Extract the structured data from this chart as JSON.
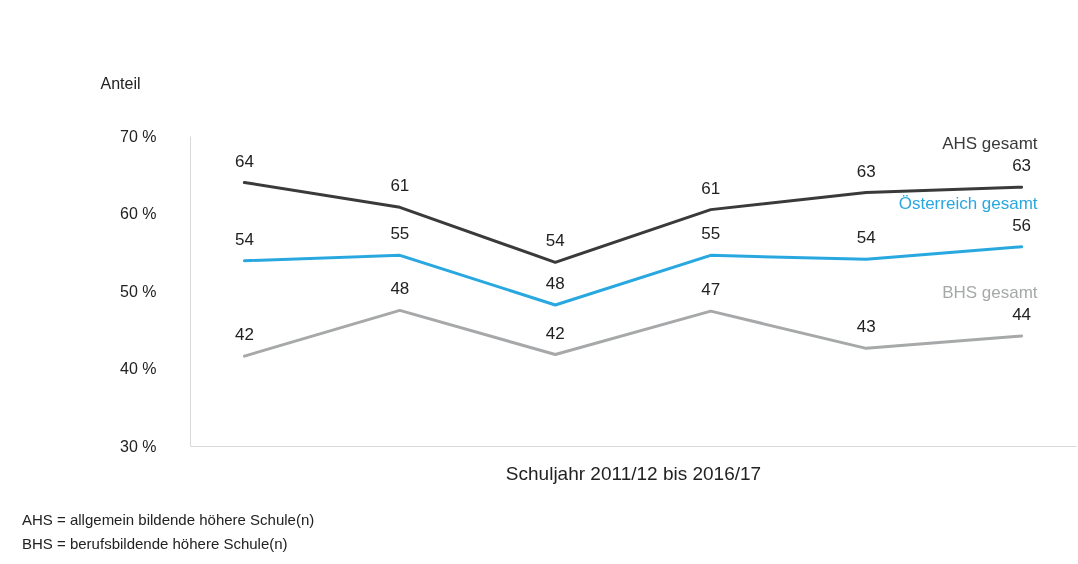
{
  "chart_data": {
    "type": "line",
    "ylabel": "Anteil",
    "xlabel": "Schuljahr 2011/12 bis 2016/17",
    "categories": [
      null,
      null,
      null,
      null,
      null,
      null
    ],
    "ylim": [
      30,
      70
    ],
    "yticks": [
      {
        "value": 30,
        "label": "30 %"
      },
      {
        "value": 40,
        "label": "40 %"
      },
      {
        "value": 50,
        "label": "50 %"
      },
      {
        "value": 60,
        "label": "60 %"
      },
      {
        "value": 70,
        "label": "70 %"
      }
    ],
    "grid": false,
    "marker": "none",
    "line_style": "solid",
    "series": [
      {
        "name": "AHS gesamt",
        "color": "#3a3a3a",
        "values": [
          64.0,
          60.8,
          53.7,
          60.5,
          62.7,
          63.4
        ],
        "value_labels": [
          "64",
          "61",
          "54",
          "61",
          "63",
          "63"
        ]
      },
      {
        "name": "Österreich gesamt",
        "color": "#29a8e0",
        "values": [
          53.9,
          54.6,
          48.2,
          54.6,
          54.1,
          55.7
        ],
        "value_labels": [
          "54",
          "55",
          "48",
          "55",
          "54",
          "56"
        ]
      },
      {
        "name": "BHS gesamt",
        "color": "#a6a8a9",
        "values": [
          41.6,
          47.5,
          41.8,
          47.4,
          42.6,
          44.2
        ],
        "value_labels": [
          "42",
          "48",
          "42",
          "47",
          "43",
          "44"
        ]
      }
    ],
    "annotations": [
      "AHS = allgemein bildende höhere Schule(n)",
      "BHS = berufsbildende höhere Schule(n)"
    ]
  }
}
